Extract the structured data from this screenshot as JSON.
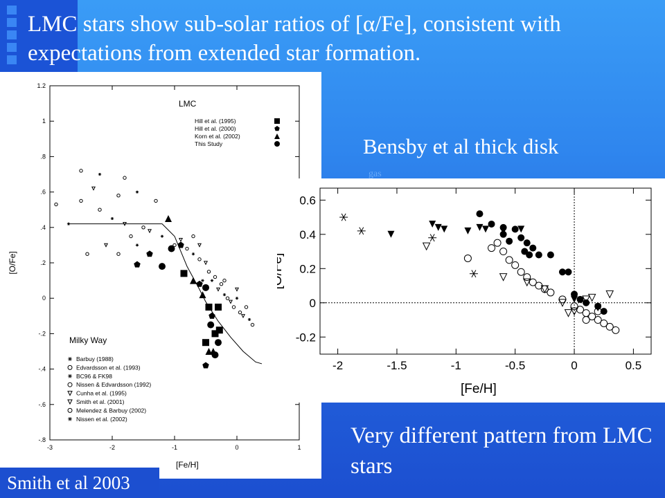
{
  "slide": {
    "title": "LMC stars show sub-solar ratios of [α/Fe], consistent with expectations from extended star formation.",
    "bensby_label": "Bensby et al thick disk",
    "gas_label": "gas",
    "right_caption": "Very different pattern from LMC stars",
    "left_caption": "Smith et al 2003",
    "colors": {
      "background": "#2a7ae8",
      "accent_square": "#1b53d6",
      "text": "#ffffff"
    }
  },
  "chart_data": [
    {
      "type": "scatter",
      "xlabel": "[Fe/H]",
      "ylabel": "[O/Fe]",
      "xlim": [
        -3,
        1
      ],
      "ylim": [
        -0.8,
        1.2
      ],
      "xticks": [
        "-3",
        "-2",
        "-1",
        "0",
        "1"
      ],
      "yticks": [
        "-.8",
        "-.6",
        "-.4",
        "-.2",
        "0",
        ".2",
        ".4",
        ".6",
        ".8",
        "1",
        "1.2"
      ],
      "legend_top": {
        "title": "LMC",
        "entries": [
          "Hill et al. (1995)",
          "Hill et al. (2000)",
          "Korn et al. (2002)",
          "This Study"
        ]
      },
      "legend_bottom": {
        "title": "Milky Way",
        "entries": [
          "Barbuy (1988)",
          "Edvardsson et al. (1993)",
          "BC96 & FK98",
          "Nissen & Edvardsson (1992)",
          "Cunha et al. (1995)",
          "Smith et al. (2001)",
          "Melendez & Barbuy (2002)",
          "Nissen et al. (2002)"
        ]
      },
      "model_curve": [
        [
          -2.7,
          0.42
        ],
        [
          -1.2,
          0.42
        ],
        [
          -1.0,
          0.35
        ],
        [
          -0.8,
          0.18
        ],
        [
          -0.6,
          0.05
        ],
        [
          -0.5,
          -0.02
        ],
        [
          -0.3,
          -0.13
        ],
        [
          -0.1,
          -0.22
        ],
        [
          0.1,
          -0.3
        ],
        [
          0.3,
          -0.36
        ],
        [
          0.4,
          -0.37
        ]
      ],
      "lmc_points": [
        [
          -1.6,
          0.19
        ],
        [
          -1.2,
          0.18
        ],
        [
          -0.85,
          0.14
        ],
        [
          -0.7,
          0.1
        ],
        [
          -0.6,
          0.08
        ],
        [
          -0.5,
          0.06
        ],
        [
          -0.45,
          -0.05
        ],
        [
          -0.55,
          0.02
        ],
        [
          -0.4,
          -0.1
        ],
        [
          -0.42,
          -0.15
        ],
        [
          -0.35,
          -0.2
        ],
        [
          -0.38,
          -0.3
        ],
        [
          -0.5,
          -0.38
        ],
        [
          -0.35,
          -0.32
        ],
        [
          -0.5,
          -0.25
        ],
        [
          -1.1,
          0.45
        ],
        [
          -0.9,
          0.3
        ],
        [
          -1.05,
          0.28
        ],
        [
          -0.3,
          -0.05
        ],
        [
          -0.45,
          -0.3
        ],
        [
          -1.4,
          0.25
        ],
        [
          -0.3,
          -0.25
        ],
        [
          -0.28,
          -0.18
        ]
      ],
      "milky_way_points": [
        [
          -2.9,
          0.53
        ],
        [
          -2.7,
          0.42
        ],
        [
          -2.5,
          0.55
        ],
        [
          -2.3,
          0.62
        ],
        [
          -2.2,
          0.5
        ],
        [
          -2.0,
          0.45
        ],
        [
          -1.9,
          0.58
        ],
        [
          -1.8,
          0.42
        ],
        [
          -1.7,
          0.35
        ],
        [
          -1.6,
          0.6
        ],
        [
          -1.5,
          0.4
        ],
        [
          -1.4,
          0.38
        ],
        [
          -1.3,
          0.55
        ],
        [
          -1.2,
          0.35
        ],
        [
          -1.0,
          0.3
        ],
        [
          -0.9,
          0.33
        ],
        [
          -0.8,
          0.28
        ],
        [
          -0.7,
          0.25
        ],
        [
          -0.6,
          0.22
        ],
        [
          -0.5,
          0.2
        ],
        [
          -0.45,
          0.15
        ],
        [
          -0.4,
          0.1
        ],
        [
          -0.35,
          0.12
        ],
        [
          -0.3,
          0.05
        ],
        [
          -0.25,
          0.08
        ],
        [
          -0.2,
          0.02
        ],
        [
          -0.15,
          0.0
        ],
        [
          -0.1,
          -0.02
        ],
        [
          -0.05,
          -0.05
        ],
        [
          0.0,
          0.0
        ],
        [
          0.05,
          -0.08
        ],
        [
          0.1,
          -0.1
        ],
        [
          0.15,
          -0.05
        ],
        [
          0.2,
          -0.12
        ],
        [
          0.25,
          -0.15
        ],
        [
          -0.6,
          0.3
        ],
        [
          -0.7,
          0.35
        ],
        [
          -0.55,
          0.1
        ],
        [
          -0.2,
          0.1
        ],
        [
          0.0,
          0.05
        ],
        [
          -2.5,
          0.72
        ],
        [
          -2.2,
          0.7
        ],
        [
          -1.8,
          0.68
        ],
        [
          -2.1,
          0.3
        ],
        [
          -2.4,
          0.25
        ],
        [
          -1.6,
          0.3
        ],
        [
          -1.9,
          0.25
        ]
      ]
    },
    {
      "type": "scatter",
      "xlabel": "[Fe/H]",
      "ylabel": "[O/Fe]",
      "xlim": [
        -2.15,
        0.65
      ],
      "ylim": [
        -0.3,
        0.67
      ],
      "xticks": [
        "-2",
        "-1.5",
        "-1",
        "-0.5",
        "0",
        "0.5"
      ],
      "yticks": [
        "-0.2",
        "0",
        "0.2",
        "0.4",
        "0.6"
      ],
      "reference_lines": {
        "x": 0,
        "y": 0
      },
      "series": [
        {
          "marker": "filled-circle",
          "points": [
            [
              -0.8,
              0.52
            ],
            [
              -0.7,
              0.46
            ],
            [
              -0.6,
              0.44
            ],
            [
              -0.5,
              0.43
            ],
            [
              -0.45,
              0.38
            ],
            [
              -0.4,
              0.35
            ],
            [
              -0.42,
              0.3
            ],
            [
              -0.35,
              0.32
            ],
            [
              -0.3,
              0.28
            ],
            [
              -0.2,
              0.28
            ],
            [
              -0.1,
              0.18
            ],
            [
              -0.05,
              0.18
            ],
            [
              0.0,
              0.05
            ],
            [
              0.05,
              0.02
            ],
            [
              0.1,
              0.0
            ],
            [
              0.2,
              -0.02
            ],
            [
              0.25,
              -0.05
            ],
            [
              -0.55,
              0.36
            ],
            [
              -0.38,
              0.28
            ],
            [
              -0.6,
              0.4
            ]
          ]
        },
        {
          "marker": "open-circle",
          "points": [
            [
              -0.7,
              0.32
            ],
            [
              -0.65,
              0.35
            ],
            [
              -0.6,
              0.3
            ],
            [
              -0.55,
              0.25
            ],
            [
              -0.5,
              0.22
            ],
            [
              -0.45,
              0.18
            ],
            [
              -0.4,
              0.15
            ],
            [
              -0.35,
              0.12
            ],
            [
              -0.3,
              0.1
            ],
            [
              -0.25,
              0.08
            ],
            [
              -0.2,
              0.06
            ],
            [
              -0.1,
              0.02
            ],
            [
              0.0,
              -0.02
            ],
            [
              0.05,
              -0.04
            ],
            [
              0.1,
              -0.06
            ],
            [
              0.15,
              -0.08
            ],
            [
              0.2,
              -0.1
            ],
            [
              0.25,
              -0.12
            ],
            [
              0.3,
              -0.14
            ],
            [
              0.35,
              -0.16
            ],
            [
              0.1,
              -0.1
            ],
            [
              0.2,
              -0.05
            ],
            [
              -0.9,
              0.26
            ]
          ]
        },
        {
          "marker": "filled-triangle-down",
          "points": [
            [
              -1.55,
              0.4
            ],
            [
              -1.2,
              0.46
            ],
            [
              -1.15,
              0.44
            ],
            [
              -1.1,
              0.43
            ],
            [
              -0.9,
              0.42
            ],
            [
              -0.8,
              0.44
            ],
            [
              -0.75,
              0.43
            ],
            [
              -0.6,
              0.42
            ],
            [
              -0.45,
              0.43
            ],
            [
              0.0,
              0.02
            ],
            [
              0.2,
              -0.03
            ]
          ]
        },
        {
          "marker": "open-triangle-down",
          "points": [
            [
              -1.25,
              0.33
            ],
            [
              -0.6,
              0.15
            ],
            [
              -0.4,
              0.12
            ],
            [
              -0.25,
              0.08
            ],
            [
              -0.1,
              0.0
            ],
            [
              0.0,
              -0.05
            ],
            [
              0.1,
              0.02
            ],
            [
              0.15,
              0.03
            ],
            [
              0.3,
              0.05
            ],
            [
              -0.05,
              -0.06
            ]
          ]
        },
        {
          "marker": "asterisk",
          "points": [
            [
              -1.95,
              0.5
            ],
            [
              -1.8,
              0.42
            ],
            [
              -0.85,
              0.17
            ],
            [
              -1.2,
              0.38
            ]
          ]
        }
      ]
    }
  ]
}
